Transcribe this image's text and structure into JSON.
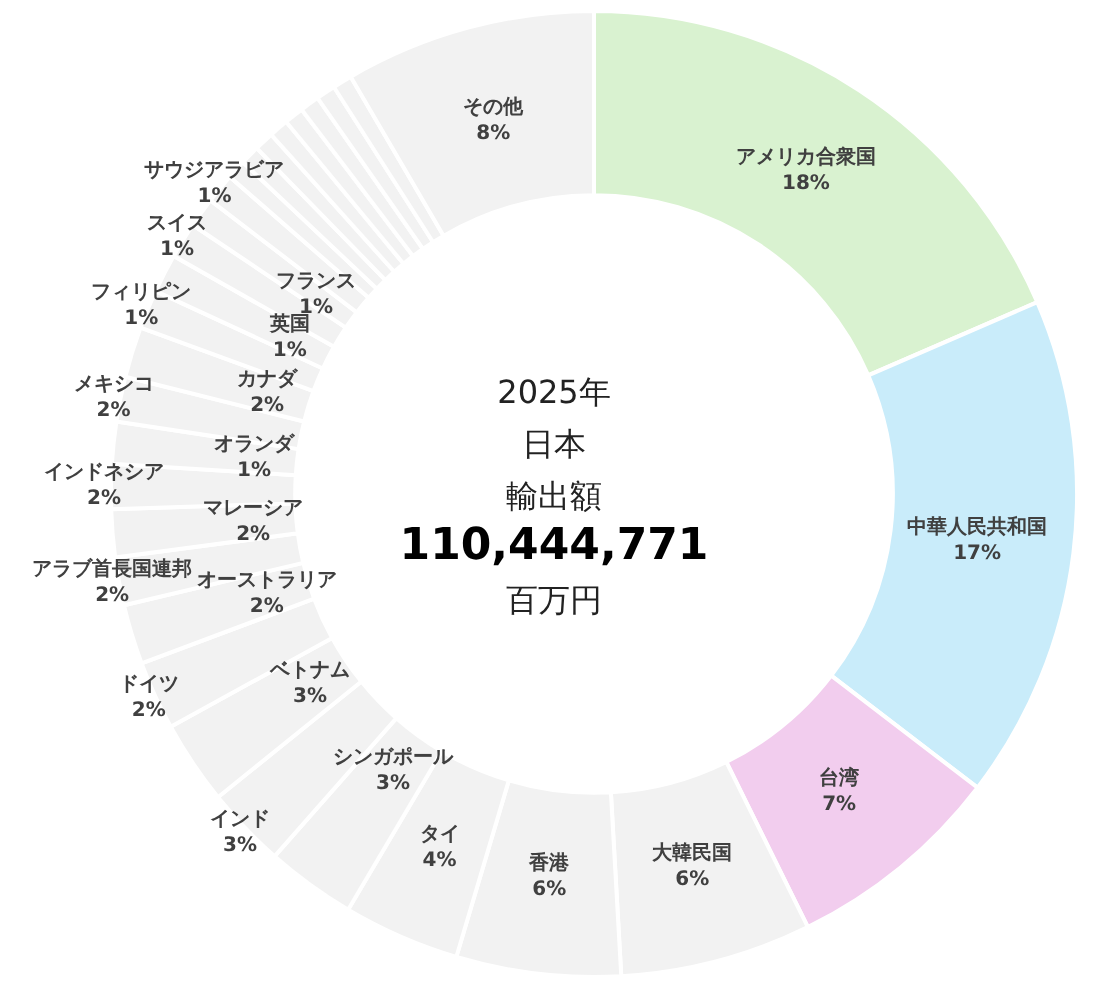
{
  "chart_data": {
    "type": "donut",
    "categories": [
      "アメリカ合衆国",
      "中華人民共和国",
      "台湾",
      "大韓民国",
      "香港",
      "タイ",
      "シンガポール",
      "インド",
      "ベトナム",
      "ドイツ",
      "オーストラリア",
      "アラブ首長国連邦",
      "マレーシア",
      "インドネシア",
      "オランダ",
      "メキシコ",
      "カナダ",
      "フィリピン",
      "英国",
      "スイス",
      "フランス",
      "サウジアラビア",
      null,
      null,
      null,
      null,
      null,
      null,
      null,
      null,
      "その他"
    ],
    "values": [
      18.5,
      16.9,
      7.3,
      6.4,
      5.5,
      3.9,
      3.0,
      2.7,
      2.8,
      2.3,
      2.0,
      1.6,
      1.6,
      1.5,
      1.4,
      1.5,
      1.7,
      1.3,
      1.3,
      1.2,
      1.0,
      1.0,
      0.65,
      0.65,
      0.65,
      0.65,
      0.65,
      0.65,
      0.65,
      0.65,
      8.4
    ],
    "value_labels": [
      "18%",
      "17%",
      "7%",
      "6%",
      "6%",
      "4%",
      "3%",
      "3%",
      "3%",
      "2%",
      "2%",
      "2%",
      "2%",
      "2%",
      "1%",
      "2%",
      "2%",
      "1%",
      "1%",
      "1%",
      "1%",
      "1%",
      null,
      null,
      null,
      null,
      null,
      null,
      null,
      null,
      "8%"
    ],
    "colors": [
      "#d9f2d0",
      "#c9ecfa",
      "#f2cdee",
      "#f2f2f2",
      "#f2f2f2",
      "#f2f2f2",
      "#f2f2f2",
      "#f2f2f2",
      "#f2f2f2",
      "#f2f2f2",
      "#f2f2f2",
      "#f2f2f2",
      "#f2f2f2",
      "#f2f2f2",
      "#f2f2f2",
      "#f2f2f2",
      "#f2f2f2",
      "#f2f2f2",
      "#f2f2f2",
      "#f2f2f2",
      "#f2f2f2",
      "#f2f2f2",
      "#f2f2f2",
      "#f2f2f2",
      "#f2f2f2",
      "#f2f2f2",
      "#f2f2f2",
      "#f2f2f2",
      "#f2f2f2",
      "#f2f2f2",
      "#f2f2f2"
    ],
    "annotations": [
      "2025年",
      "日本",
      "輸出額",
      "110,444,771",
      "百万円"
    ]
  }
}
